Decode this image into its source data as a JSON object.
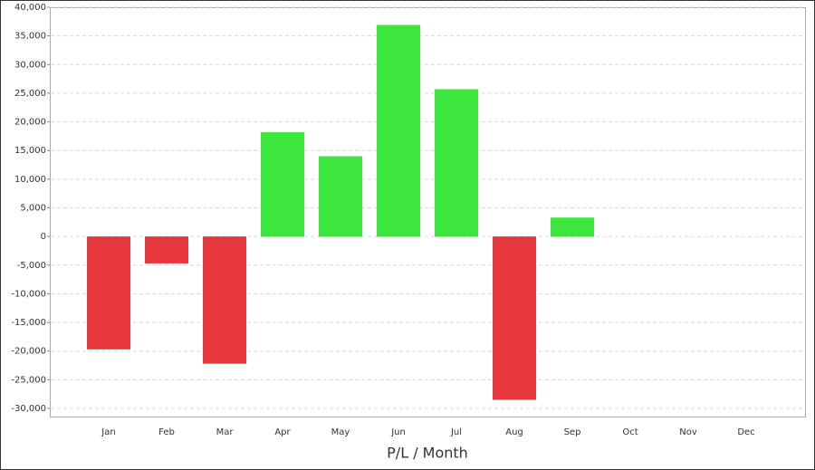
{
  "chart_data": {
    "type": "bar",
    "title": "P/L / Month",
    "categories": [
      "Jan",
      "Feb",
      "Mar",
      "Apr",
      "May",
      "Jun",
      "Jul",
      "Aug",
      "Sep",
      "Oct",
      "Nov",
      "Dec"
    ],
    "values": [
      -19700,
      -4700,
      -22200,
      18200,
      14000,
      36900,
      25700,
      -28500,
      3300,
      null,
      null,
      null
    ],
    "positive_color": "#3de63d",
    "negative_color": "#e6373c",
    "ylim": [
      -30000,
      40000
    ],
    "yticks": [
      {
        "value": -30000,
        "label": "-30,000"
      },
      {
        "value": -25000,
        "label": "-25,000"
      },
      {
        "value": -20000,
        "label": "-20,000"
      },
      {
        "value": -15000,
        "label": "-15,000"
      },
      {
        "value": -10000,
        "label": "-10,000"
      },
      {
        "value": -5000,
        "label": "-5,000"
      },
      0,
      {
        "value": 5000,
        "label": "5,000"
      },
      {
        "value": 10000,
        "label": "10,000"
      },
      {
        "value": 15000,
        "label": "15,000"
      },
      {
        "value": 20000,
        "label": "20,000"
      },
      {
        "value": 25000,
        "label": "25,000"
      },
      {
        "value": 30000,
        "label": "30,000"
      },
      {
        "value": 35000,
        "label": "35,000"
      },
      {
        "value": 40000,
        "label": "40,000"
      }
    ],
    "grid": true
  }
}
